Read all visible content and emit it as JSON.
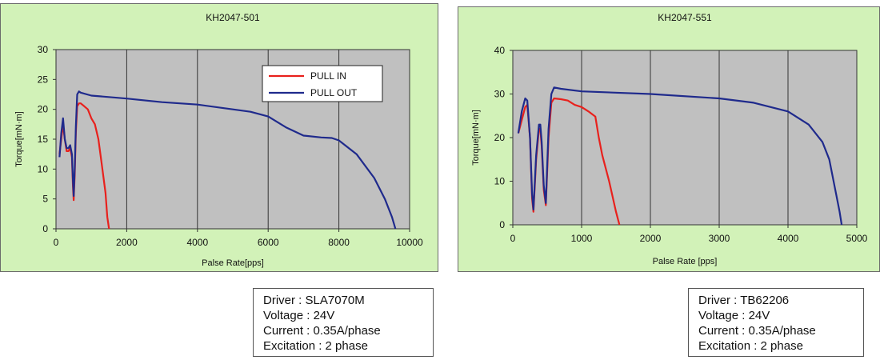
{
  "chart_data": [
    {
      "type": "line",
      "title": "KH2047-501",
      "xlabel": "Palse Rate[pps]",
      "ylabel": "Torque[mN·m]",
      "xlim": [
        0,
        10000
      ],
      "ylim": [
        0,
        30
      ],
      "xticks": [
        "0",
        "2000",
        "4000",
        "6000",
        "8000",
        "10000"
      ],
      "yticks": [
        "0",
        "5",
        "10",
        "15",
        "20",
        "25",
        "30"
      ],
      "grid": "vertical",
      "legend": "top-right",
      "series": [
        {
          "name": "PULL IN",
          "color": "#e8211d",
          "x": [
            100,
            150,
            200,
            250,
            300,
            350,
            400,
            450,
            480,
            500,
            530,
            560,
            600,
            650,
            700,
            800,
            900,
            1000,
            1100,
            1200,
            1300,
            1400,
            1450,
            1500
          ],
          "y": [
            12.5,
            15,
            17.5,
            15,
            13,
            13,
            13.5,
            12,
            7,
            4.8,
            9,
            16,
            20.5,
            21,
            21,
            20.5,
            20,
            18.5,
            17.5,
            15,
            10.5,
            6,
            2,
            0
          ]
        },
        {
          "name": "PULL OUT",
          "color": "#1f2a8c",
          "x": [
            100,
            150,
            200,
            250,
            300,
            350,
            400,
            450,
            480,
            500,
            530,
            560,
            600,
            650,
            700,
            1000,
            2000,
            3000,
            4000,
            5000,
            5500,
            6000,
            6500,
            7000,
            7500,
            7800,
            8000,
            8500,
            9000,
            9300,
            9500,
            9600
          ],
          "y": [
            12,
            16,
            18.5,
            15,
            13.5,
            13.5,
            14,
            12.5,
            8,
            5.5,
            10,
            17,
            22.5,
            23,
            22.8,
            22.3,
            21.8,
            21.2,
            20.8,
            20,
            19.6,
            18.8,
            17,
            15.6,
            15.3,
            15.2,
            14.8,
            12.5,
            8.5,
            5,
            2,
            0
          ]
        }
      ]
    },
    {
      "type": "line",
      "title": "KH2047-551",
      "xlabel": "Palse Rate [pps]",
      "ylabel": "Torque[mN·m]",
      "xlim": [
        0,
        5000
      ],
      "ylim": [
        0,
        40
      ],
      "xticks": [
        "0",
        "1000",
        "2000",
        "3000",
        "4000",
        "5000"
      ],
      "yticks": [
        "0",
        "10",
        "20",
        "30",
        "40"
      ],
      "grid": "vertical",
      "legend": "none",
      "series": [
        {
          "name": "PULL IN",
          "color": "#e8211d",
          "x": [
            80,
            130,
            180,
            210,
            250,
            280,
            300,
            340,
            380,
            400,
            420,
            450,
            480,
            520,
            560,
            600,
            700,
            800,
            900,
            1000,
            1100,
            1200,
            1250,
            1300,
            1400,
            1500,
            1550
          ],
          "y": [
            21,
            24,
            27,
            27.5,
            20,
            6,
            3,
            15,
            22,
            22,
            18,
            8,
            4.5,
            20,
            28,
            29,
            28.8,
            28.5,
            27.5,
            27,
            26,
            24.8,
            20,
            16,
            10,
            3,
            0
          ]
        },
        {
          "name": "PULL OUT",
          "color": "#1f2a8c",
          "x": [
            80,
            130,
            180,
            210,
            250,
            280,
            300,
            340,
            380,
            400,
            420,
            450,
            480,
            520,
            560,
            600,
            700,
            1000,
            2000,
            3000,
            3500,
            4000,
            4300,
            4500,
            4600,
            4700,
            4750,
            4780
          ],
          "y": [
            21,
            26,
            29,
            28.5,
            20,
            7,
            3.5,
            16,
            23,
            23,
            19,
            9,
            5,
            22,
            30,
            31.5,
            31.2,
            30.6,
            30,
            29,
            28,
            26,
            23,
            19,
            15,
            7,
            3,
            0
          ]
        }
      ]
    }
  ],
  "info_boxes": [
    {
      "rows": [
        {
          "label": "Driver :",
          "value": "SLA7070M"
        },
        {
          "label": "Voltage :",
          "value": "24V"
        },
        {
          "label": "Current :",
          "value": "0.35A/phase"
        },
        {
          "label": "Excitation :",
          "value": "2 phase"
        }
      ]
    },
    {
      "rows": [
        {
          "label": "Driver :",
          "value": "TB62206"
        },
        {
          "label": "Voltage :",
          "value": "24V"
        },
        {
          "label": "Current :",
          "value": "0.35A/phase"
        },
        {
          "label": "Excitation :",
          "value": "2 phase"
        }
      ]
    }
  ]
}
